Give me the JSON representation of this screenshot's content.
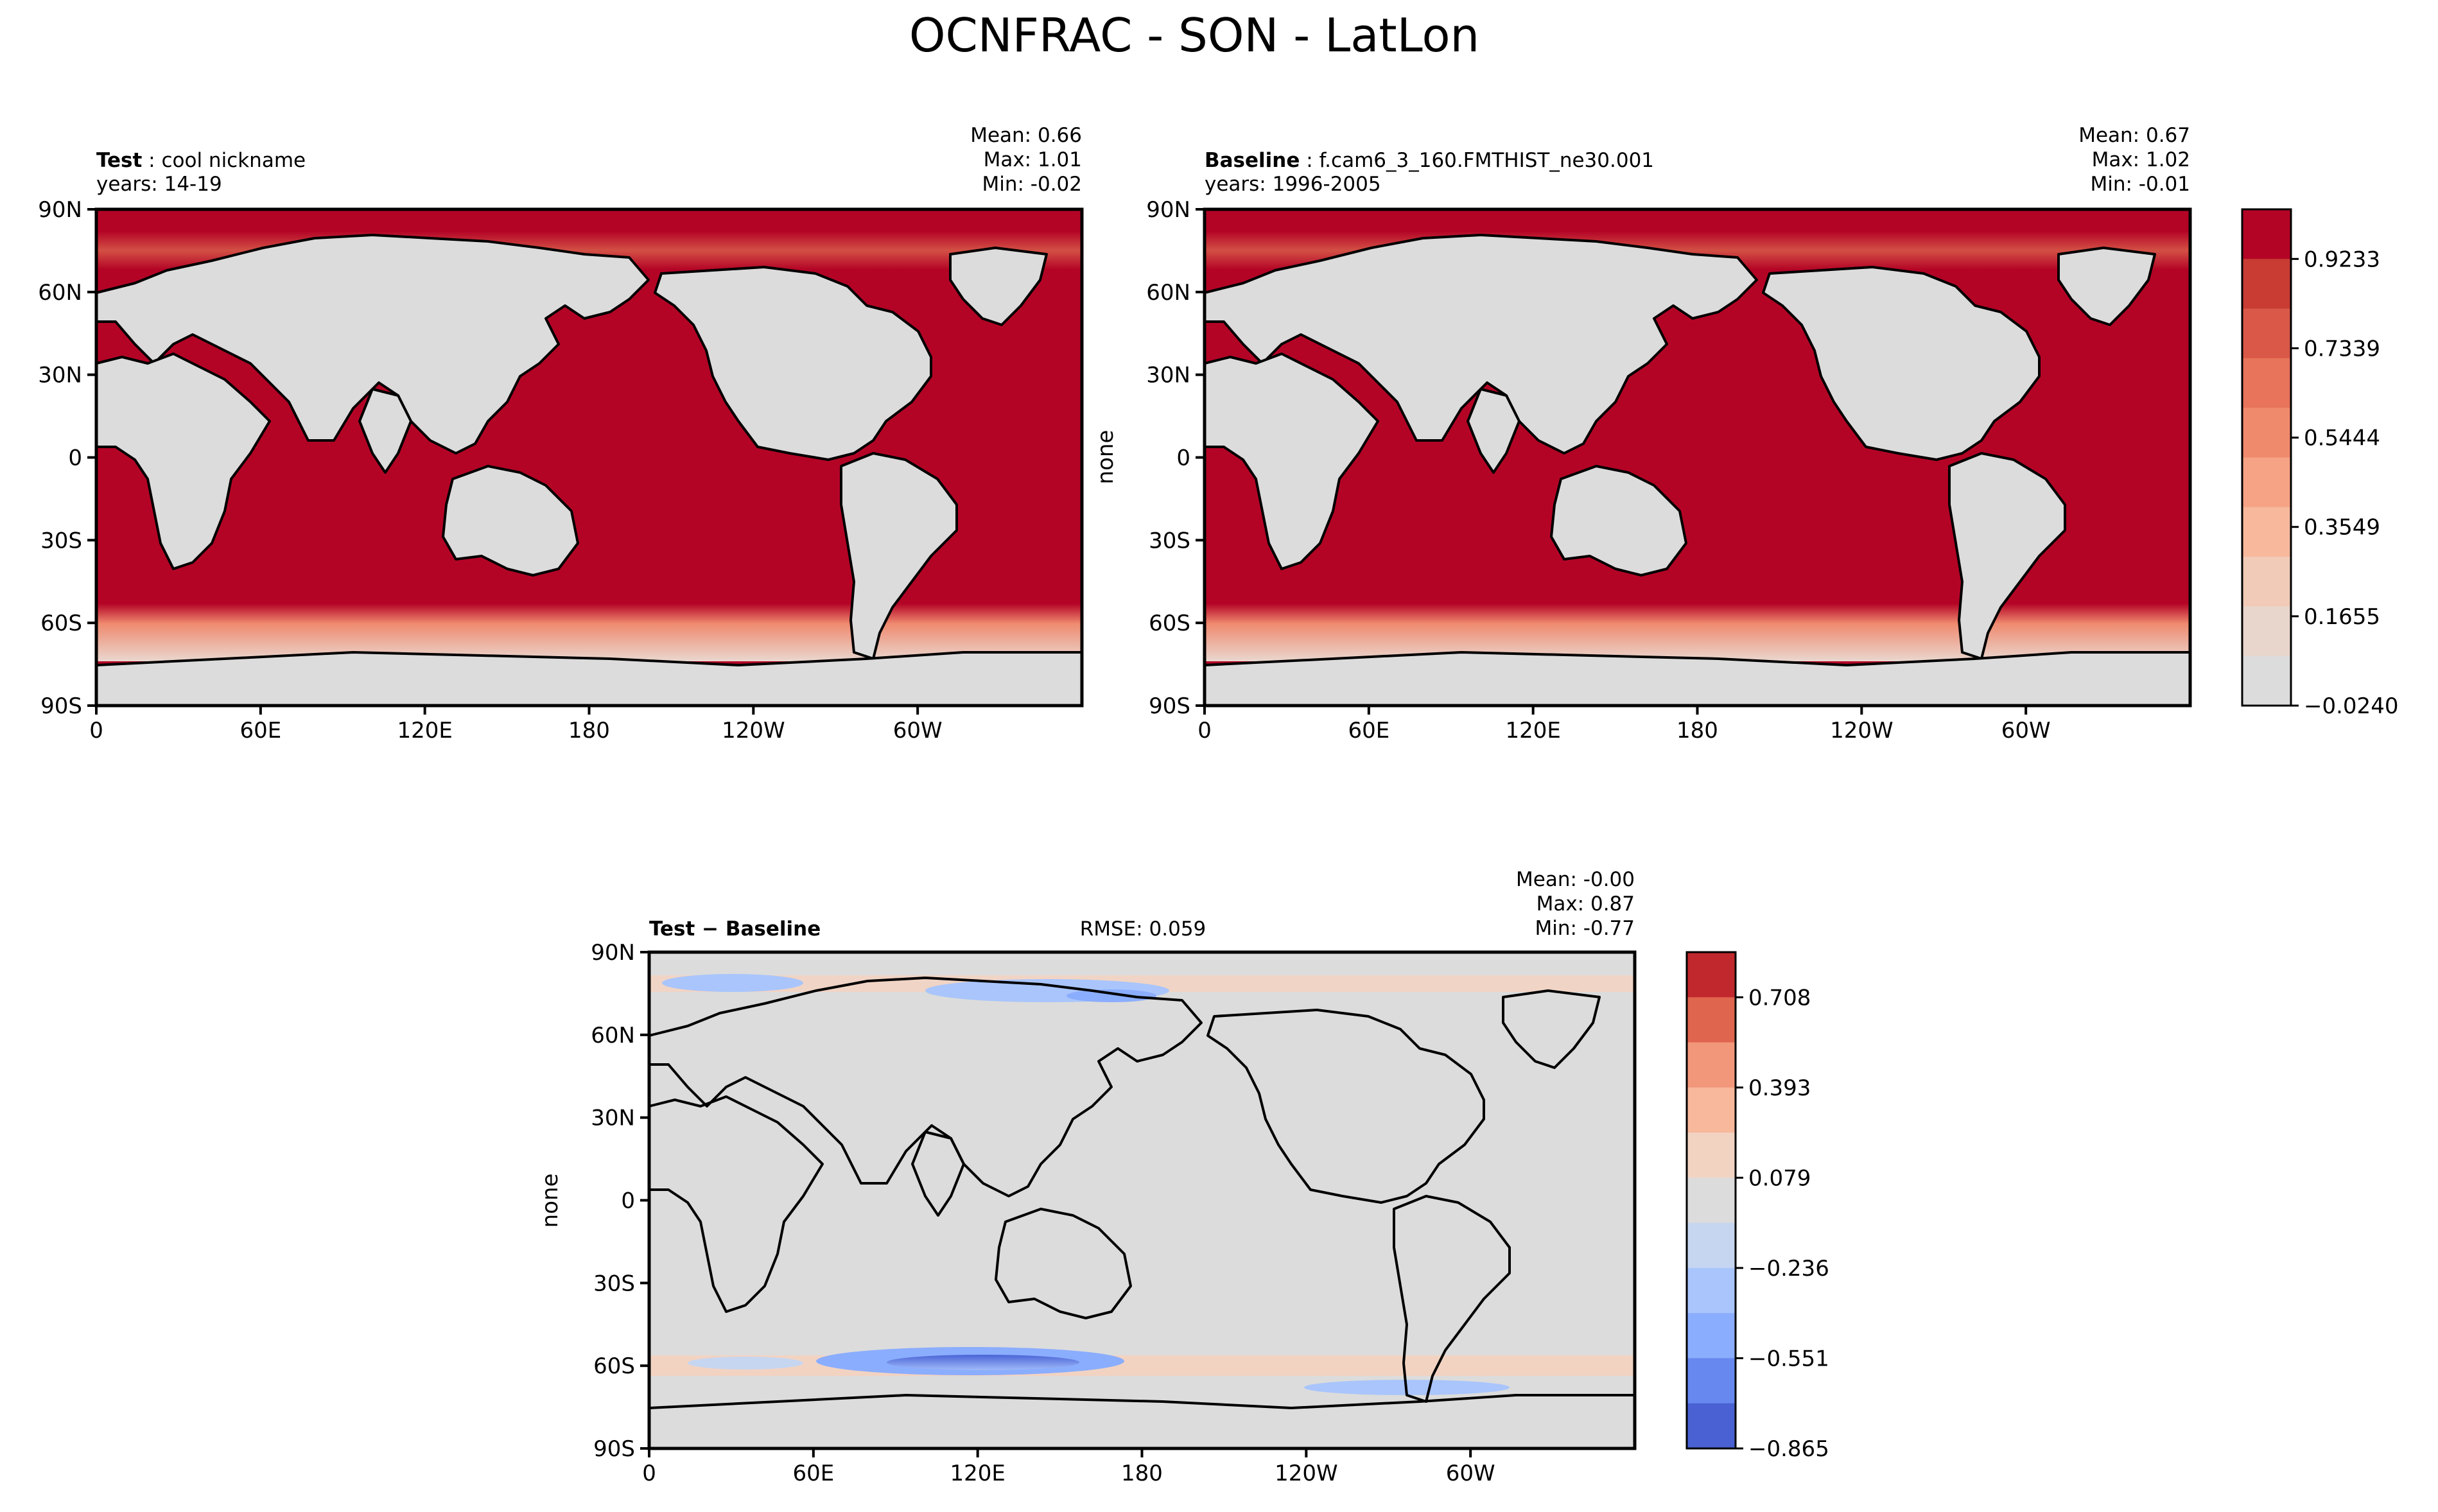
{
  "figure": {
    "title": "OCNFRAC - SON - LatLon"
  },
  "chart_data": [
    {
      "type": "heatmap",
      "panel": "test",
      "label_bold": "Test",
      "label_rest": " : cool nickname",
      "years": "years: 14-19",
      "stats": {
        "mean": "Mean:  0.66",
        "max": "Max:  1.01",
        "min": "Min: -0.02"
      },
      "ylabel": "",
      "x_ticks": [
        "0",
        "60E",
        "120E",
        "180",
        "120W",
        "60W"
      ],
      "y_ticks": [
        "90N",
        "60N",
        "30N",
        "0",
        "30S",
        "60S",
        "90S"
      ],
      "ocean_color": "#b40426",
      "land_color": "#dddcdc"
    },
    {
      "type": "heatmap",
      "panel": "baseline",
      "label_bold": "Baseline",
      "label_rest": " : f.cam6_3_160.FMTHIST_ne30.001",
      "years": "years: 1996-2005",
      "stats": {
        "mean": "Mean:  0.67",
        "max": "Max:  1.02",
        "min": "Min: -0.01"
      },
      "ylabel": "none",
      "x_ticks": [
        "0",
        "60E",
        "120E",
        "180",
        "120W",
        "60W"
      ],
      "y_ticks": [
        "90N",
        "60N",
        "30N",
        "0",
        "30S",
        "60S",
        "90S"
      ],
      "colorbar": {
        "ticks": [
          "0.9233",
          "0.7339",
          "0.5444",
          "0.3549",
          "0.1655",
          "−0.0240"
        ],
        "colors": [
          "#b40426",
          "#c83c33",
          "#d95847",
          "#e7745b",
          "#f08a6c",
          "#f6a385",
          "#f7b89c",
          "#f1cbb8",
          "#e8d6cc",
          "#dddcdc"
        ]
      }
    },
    {
      "type": "heatmap",
      "panel": "difference",
      "label_bold": "Test − Baseline",
      "rmse": "RMSE: 0.059",
      "stats": {
        "mean": "Mean: -0.00",
        "max": "Max:  0.87",
        "min": "Min: -0.77"
      },
      "ylabel": "none",
      "x_ticks": [
        "0",
        "60E",
        "120E",
        "180",
        "120W",
        "60W"
      ],
      "y_ticks": [
        "90N",
        "60N",
        "30N",
        "0",
        "30S",
        "60S",
        "90S"
      ],
      "land_color": "#dcdcdc",
      "colorbar": {
        "ticks": [
          "0.708",
          "0.393",
          "0.079",
          "−0.236",
          "−0.551",
          "−0.865"
        ],
        "colors": [
          "#c0282d",
          "#e0654f",
          "#f2977a",
          "#f7b89c",
          "#f2d3c2",
          "#dcdcdc",
          "#c6d6f1",
          "#a9c5fc",
          "#8badfd",
          "#6788ee",
          "#4961d2"
        ]
      }
    }
  ]
}
